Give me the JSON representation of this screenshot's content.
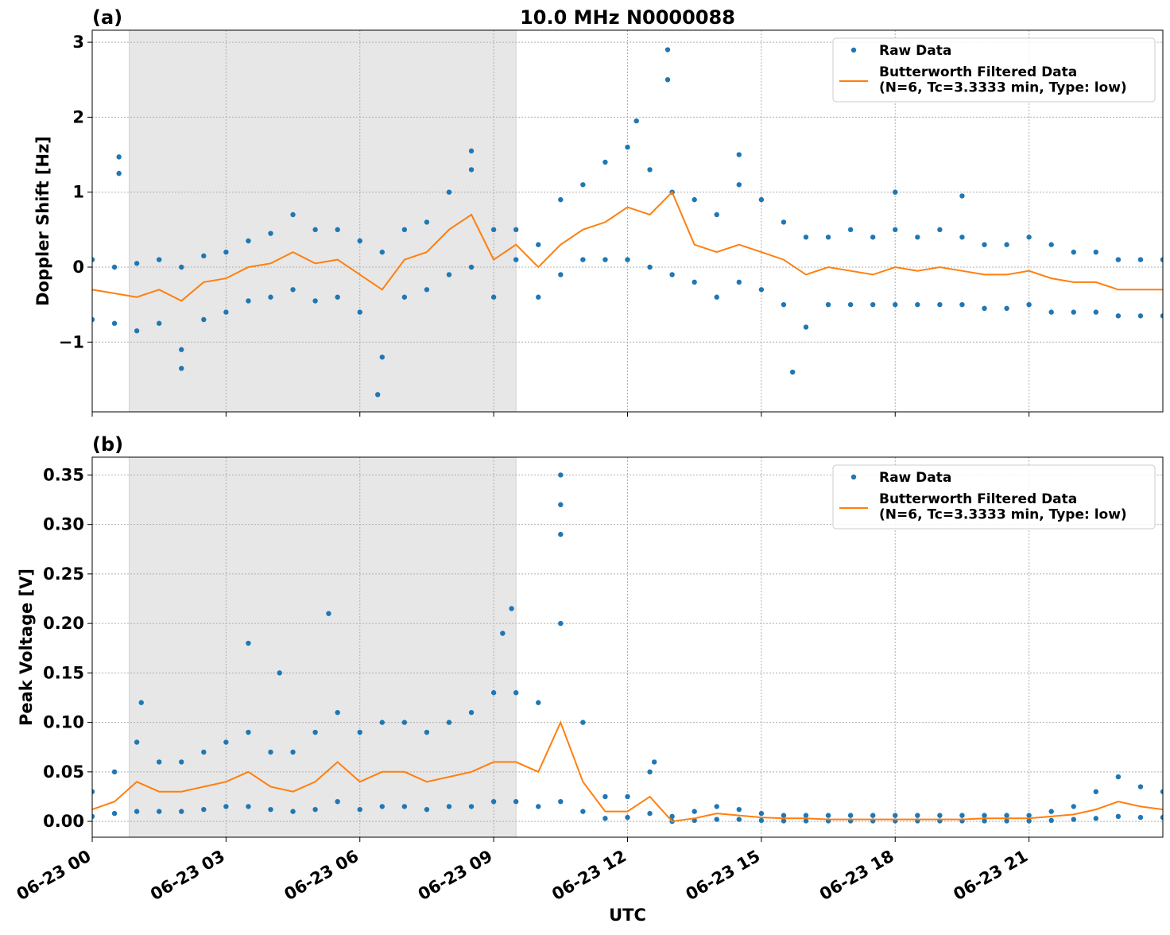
{
  "chart_data": [
    {
      "type": "scatter-line",
      "panel_label": "(a)",
      "title": "10.0 MHz N0000088",
      "ylabel": "Doppler Shift [Hz]",
      "xlim": [
        0,
        24
      ],
      "xticks": [
        0,
        3,
        6,
        9,
        12,
        15,
        18,
        21
      ],
      "ylim": [
        -1.93,
        3.16
      ],
      "yticks": [
        {
          "value": -1,
          "label": "−1"
        },
        0,
        1,
        2,
        3
      ],
      "grid": true,
      "legend": "upper right",
      "shaded_span": [
        0.83,
        9.5
      ],
      "series": [
        {
          "name": "Raw Data",
          "kind": "points",
          "color": "#1f77b4",
          "x": [
            0,
            0,
            0.5,
            0.5,
            1,
            1,
            1.5,
            1.5,
            2,
            2,
            2.5,
            2.5,
            3,
            3,
            3.5,
            3.5,
            4,
            4,
            4.5,
            4.5,
            5,
            5,
            5.5,
            5.5,
            6,
            6,
            6.5,
            6.5,
            7,
            7,
            7.5,
            7.5,
            8,
            8,
            8.5,
            8.5,
            9,
            9,
            9.5,
            9.5,
            10,
            10,
            10.5,
            10.5,
            11,
            11,
            11.5,
            11.5,
            12,
            12,
            12.5,
            12.5,
            13,
            13,
            13.5,
            13.5,
            14,
            14,
            14.5,
            14.5,
            15,
            15,
            15.5,
            15.5,
            16,
            16,
            16.5,
            16.5,
            17,
            17,
            17.5,
            17.5,
            18,
            18,
            18.5,
            18.5,
            19,
            19,
            19.5,
            19.5,
            20,
            20,
            20.5,
            20.5,
            21,
            21,
            21.5,
            21.5,
            22,
            22,
            22.5,
            22.5,
            23,
            23,
            23.5,
            23.5,
            24,
            24,
            0.6,
            0.6,
            12.9,
            12.9,
            12.2,
            8.5,
            6.4,
            15.7,
            2.0,
            14.5,
            19.5,
            18.0
          ],
          "values": [
            0.1,
            -0.7,
            0.0,
            -0.75,
            0.05,
            -0.85,
            0.1,
            -0.75,
            0.0,
            -1.1,
            0.15,
            -0.7,
            0.2,
            -0.6,
            0.35,
            -0.45,
            0.45,
            -0.4,
            0.7,
            -0.3,
            0.5,
            -0.45,
            0.5,
            -0.4,
            0.35,
            -0.6,
            0.2,
            -1.2,
            0.5,
            -0.4,
            0.6,
            -0.3,
            1.0,
            -0.1,
            1.3,
            0.0,
            0.5,
            -0.4,
            0.5,
            0.1,
            0.3,
            -0.4,
            0.9,
            -0.1,
            1.1,
            0.1,
            1.4,
            0.1,
            1.6,
            0.1,
            1.3,
            0.0,
            1.0,
            -0.1,
            0.9,
            -0.2,
            0.7,
            -0.4,
            1.1,
            -0.2,
            0.9,
            -0.3,
            0.6,
            -0.5,
            0.4,
            -0.8,
            0.4,
            -0.5,
            0.5,
            -0.5,
            0.4,
            -0.5,
            0.5,
            -0.5,
            0.4,
            -0.5,
            0.5,
            -0.5,
            0.4,
            -0.5,
            0.3,
            -0.55,
            0.3,
            -0.55,
            0.4,
            -0.5,
            0.3,
            -0.6,
            0.2,
            -0.6,
            0.2,
            -0.6,
            0.1,
            -0.65,
            0.1,
            -0.65,
            0.1,
            -0.65,
            1.47,
            1.25,
            2.9,
            2.5,
            1.95,
            1.55,
            -1.7,
            -1.4,
            -1.35,
            1.5,
            0.95,
            1.0
          ]
        },
        {
          "name": "Butterworth Filtered Data\n(N=6, Tc=3.3333 min, Type: low)",
          "kind": "line",
          "color": "#ff7f0e",
          "x": [
            0,
            0.5,
            1,
            1.5,
            2,
            2.5,
            3,
            3.5,
            4,
            4.5,
            5,
            5.5,
            6,
            6.5,
            7,
            7.5,
            8,
            8.5,
            9,
            9.5,
            10,
            10.5,
            11,
            11.5,
            12,
            12.5,
            13,
            13.5,
            14,
            14.5,
            15,
            15.5,
            16,
            16.5,
            17,
            17.5,
            18,
            18.5,
            19,
            19.5,
            20,
            20.5,
            21,
            21.5,
            22,
            22.5,
            23,
            23.5,
            24
          ],
          "values": [
            -0.3,
            -0.35,
            -0.4,
            -0.3,
            -0.45,
            -0.2,
            -0.15,
            0.0,
            0.05,
            0.2,
            0.05,
            0.1,
            -0.1,
            -0.3,
            0.1,
            0.2,
            0.5,
            0.7,
            0.1,
            0.3,
            0.0,
            0.3,
            0.5,
            0.6,
            0.8,
            0.7,
            1.0,
            0.3,
            0.2,
            0.3,
            0.2,
            0.1,
            -0.1,
            0.0,
            -0.05,
            -0.1,
            0.0,
            -0.05,
            0.0,
            -0.05,
            -0.1,
            -0.1,
            -0.05,
            -0.15,
            -0.2,
            -0.2,
            -0.3,
            -0.3,
            -0.3
          ]
        }
      ]
    },
    {
      "type": "scatter-line",
      "panel_label": "(b)",
      "ylabel": "Peak Voltage [V]",
      "xlabel": "UTC",
      "xlim": [
        0,
        24
      ],
      "xticks": [
        {
          "value": 0,
          "label": "06-23 00"
        },
        {
          "value": 3,
          "label": "06-23 03"
        },
        {
          "value": 6,
          "label": "06-23 06"
        },
        {
          "value": 9,
          "label": "06-23 09"
        },
        {
          "value": 12,
          "label": "06-23 12"
        },
        {
          "value": 15,
          "label": "06-23 15"
        },
        {
          "value": 18,
          "label": "06-23 18"
        },
        {
          "value": 21,
          "label": "06-23 21"
        }
      ],
      "ylim": [
        -0.016,
        0.368
      ],
      "yticks": [
        {
          "value": 0,
          "label": "0.00"
        },
        {
          "value": 0.05,
          "label": "0.05"
        },
        {
          "value": 0.1,
          "label": "0.10"
        },
        {
          "value": 0.15,
          "label": "0.15"
        },
        {
          "value": 0.2,
          "label": "0.20"
        },
        {
          "value": 0.25,
          "label": "0.25"
        },
        {
          "value": 0.3,
          "label": "0.30"
        },
        {
          "value": 0.35,
          "label": "0.35"
        }
      ],
      "grid": true,
      "legend": "upper right",
      "shaded_span": [
        0.83,
        9.5
      ],
      "series": [
        {
          "name": "Raw Data",
          "kind": "points",
          "color": "#1f77b4",
          "x": [
            0,
            0,
            0.5,
            0.5,
            1,
            1,
            1.5,
            1.5,
            2,
            2,
            2.5,
            2.5,
            3,
            3,
            3.5,
            3.5,
            4,
            4,
            4.5,
            4.5,
            5,
            5,
            5.5,
            5.5,
            6,
            6,
            6.5,
            6.5,
            7,
            7,
            7.5,
            7.5,
            8,
            8,
            8.5,
            8.5,
            9,
            9,
            9.5,
            9.5,
            10,
            10,
            10.5,
            10.5,
            11,
            11,
            11.5,
            11.5,
            12,
            12,
            12.5,
            12.5,
            13,
            13,
            13.5,
            13.5,
            14,
            14,
            14.5,
            14.5,
            15,
            15,
            15.5,
            15.5,
            16,
            16,
            16.5,
            16.5,
            17,
            17,
            17.5,
            17.5,
            18,
            18,
            18.5,
            18.5,
            19,
            19,
            19.5,
            19.5,
            20,
            20,
            20.5,
            20.5,
            21,
            21,
            21.5,
            21.5,
            22,
            22,
            22.5,
            22.5,
            23,
            23,
            23.5,
            23.5,
            24,
            24,
            10.5,
            10.5,
            10.5,
            5.3,
            9.4,
            3.5,
            1.1,
            12.6,
            9.2,
            4.2
          ],
          "values": [
            0.03,
            0.005,
            0.05,
            0.008,
            0.08,
            0.01,
            0.06,
            0.01,
            0.06,
            0.01,
            0.07,
            0.012,
            0.08,
            0.015,
            0.09,
            0.015,
            0.07,
            0.012,
            0.07,
            0.01,
            0.09,
            0.012,
            0.11,
            0.02,
            0.09,
            0.012,
            0.1,
            0.015,
            0.1,
            0.015,
            0.09,
            0.012,
            0.1,
            0.015,
            0.11,
            0.015,
            0.13,
            0.02,
            0.13,
            0.02,
            0.12,
            0.015,
            0.2,
            0.02,
            0.1,
            0.01,
            0.025,
            0.003,
            0.025,
            0.004,
            0.05,
            0.008,
            0.005,
            0,
            0.01,
            0.001,
            0.015,
            0.002,
            0.012,
            0.002,
            0.008,
            0.001,
            0.006,
            0.0005,
            0.006,
            0.0005,
            0.006,
            0.0005,
            0.006,
            0.0005,
            0.006,
            0.0005,
            0.006,
            0.0005,
            0.006,
            0.0005,
            0.006,
            0.0005,
            0.006,
            0.0005,
            0.006,
            0.0005,
            0.006,
            0.0005,
            0.006,
            0.0005,
            0.01,
            0.001,
            0.015,
            0.002,
            0.03,
            0.003,
            0.045,
            0.005,
            0.035,
            0.004,
            0.03,
            0.004,
            0.35,
            0.32,
            0.29,
            0.21,
            0.215,
            0.18,
            0.12,
            0.06,
            0.19,
            0.15
          ]
        },
        {
          "name": "Butterworth Filtered Data\n(N=6, Tc=3.3333 min, Type: low)",
          "kind": "line",
          "color": "#ff7f0e",
          "x": [
            0,
            0.5,
            1,
            1.5,
            2,
            2.5,
            3,
            3.5,
            4,
            4.5,
            5,
            5.5,
            6,
            6.5,
            7,
            7.5,
            8,
            8.5,
            9,
            9.5,
            10,
            10.5,
            11,
            11.5,
            12,
            12.5,
            13,
            13.5,
            14,
            14.5,
            15,
            15.5,
            16,
            16.5,
            17,
            17.5,
            18,
            18.5,
            19,
            19.5,
            20,
            20.5,
            21,
            21.5,
            22,
            22.5,
            23,
            23.5,
            24
          ],
          "values": [
            0.012,
            0.02,
            0.04,
            0.03,
            0.03,
            0.035,
            0.04,
            0.05,
            0.035,
            0.03,
            0.04,
            0.06,
            0.04,
            0.05,
            0.05,
            0.04,
            0.045,
            0.05,
            0.06,
            0.06,
            0.05,
            0.1,
            0.04,
            0.01,
            0.01,
            0.025,
            0.0,
            0.003,
            0.008,
            0.006,
            0.004,
            0.003,
            0.003,
            0.002,
            0.002,
            0.002,
            0.002,
            0.002,
            0.002,
            0.002,
            0.003,
            0.003,
            0.003,
            0.005,
            0.007,
            0.012,
            0.02,
            0.015,
            0.012
          ]
        }
      ]
    }
  ]
}
